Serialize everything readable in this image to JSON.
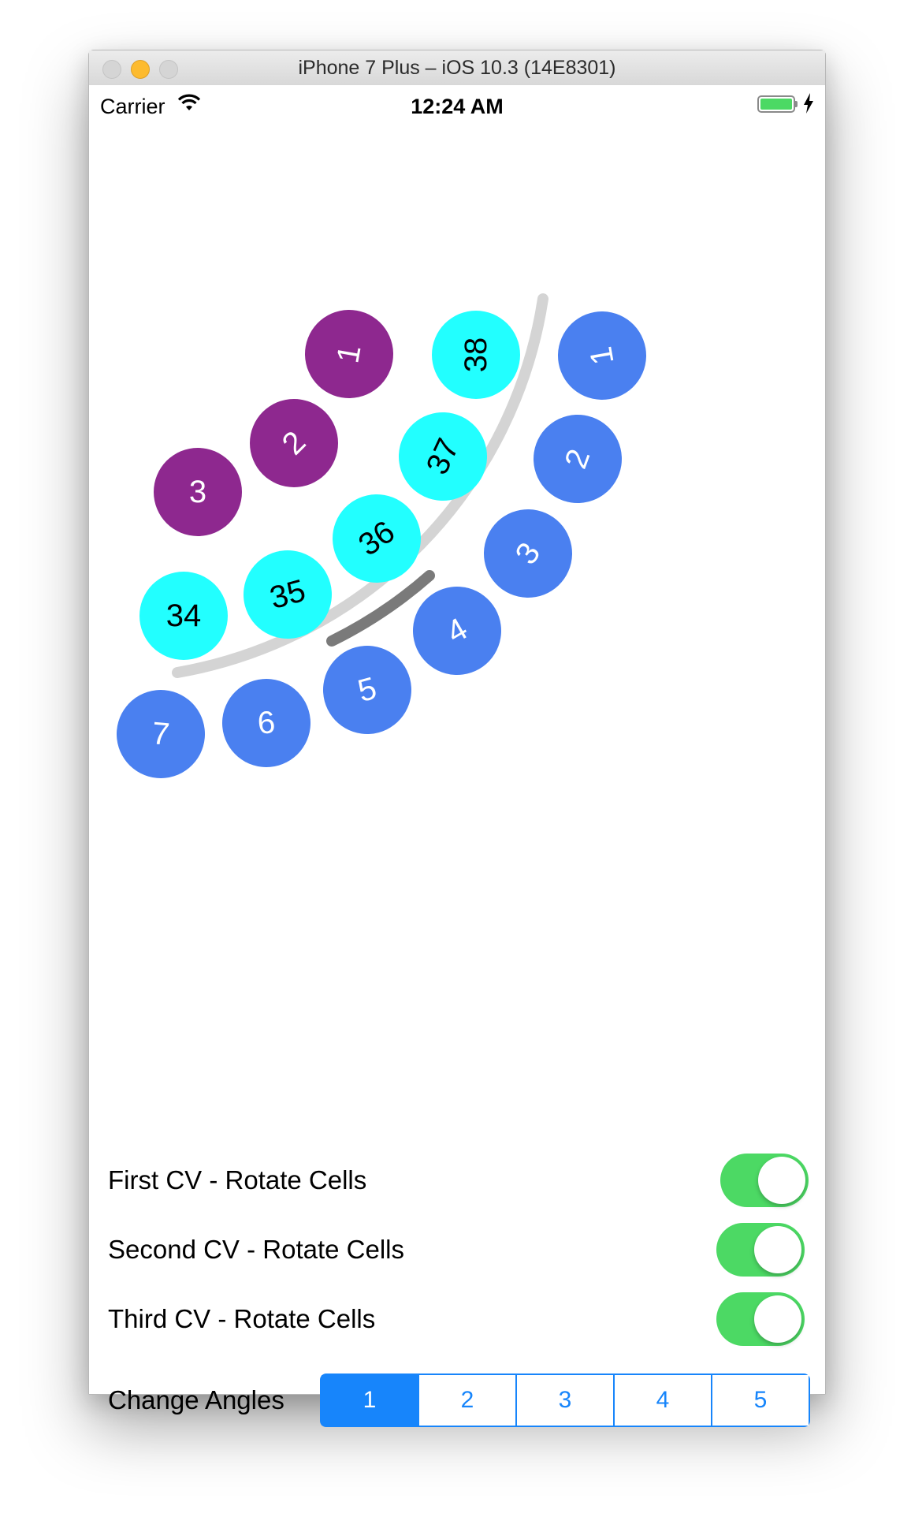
{
  "window": {
    "title": "iPhone 7 Plus – iOS 10.3 (14E8301)"
  },
  "status_bar": {
    "carrier": "Carrier",
    "time": "12:24 AM",
    "battery_color": "#4cd964"
  },
  "colors": {
    "purple": "#8e288f",
    "cyan": "#22ffff",
    "blue": "#4a80f0",
    "switch_on": "#4cd964",
    "tint": "#1785fb"
  },
  "collection_views": {
    "first": {
      "cells": [
        "1",
        "2",
        "3"
      ]
    },
    "second": {
      "cells": [
        "38",
        "37",
        "36",
        "35",
        "34"
      ]
    },
    "third": {
      "cells": [
        "1",
        "2",
        "3",
        "4",
        "5",
        "6",
        "7"
      ]
    }
  },
  "controls": {
    "first_cv_label": "First CV - Rotate Cells",
    "first_cv_on": true,
    "second_cv_label": "Second CV - Rotate Cells",
    "second_cv_on": true,
    "third_cv_label": "Third CV - Rotate Cells",
    "third_cv_on": true,
    "angles_label": "Change Angles",
    "angle_options": [
      "1",
      "2",
      "3",
      "4",
      "5"
    ],
    "selected_angle": "1"
  }
}
